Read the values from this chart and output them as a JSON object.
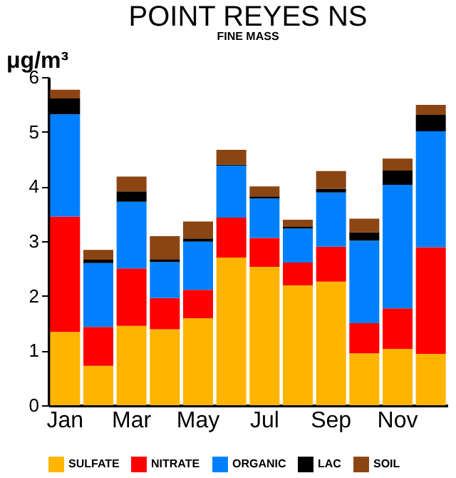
{
  "chart_data": {
    "type": "bar",
    "title": "POINT REYES NS",
    "subtitle": "FINE MASS",
    "ylabel": "μg/m³",
    "categories": [
      "Jan",
      null,
      "Mar",
      null,
      "May",
      null,
      "Jul",
      null,
      "Sep",
      null,
      "Nov",
      null
    ],
    "stacked": true,
    "ylim": [
      0,
      6
    ],
    "yticks": [
      0,
      1,
      2,
      3,
      4,
      5,
      6
    ],
    "legend": "bottom",
    "series": [
      {
        "name": "SULFATE",
        "color": "#ffb400",
        "values": [
          1.34,
          0.72,
          1.45,
          1.39,
          1.59,
          2.7,
          2.53,
          2.19,
          2.26,
          0.95,
          1.03,
          0.94
        ]
      },
      {
        "name": "NITRATE",
        "color": "#ff0000",
        "values": [
          2.11,
          0.71,
          1.05,
          0.57,
          0.52,
          0.73,
          0.53,
          0.42,
          0.64,
          0.55,
          0.74,
          1.95
        ]
      },
      {
        "name": "ORGANIC",
        "color": "#0080ff",
        "values": [
          1.87,
          1.17,
          1.22,
          0.66,
          0.88,
          0.95,
          0.72,
          0.62,
          0.99,
          1.51,
          2.26,
          2.12
        ]
      },
      {
        "name": "LAC",
        "color": "#000000",
        "values": [
          0.29,
          0.06,
          0.19,
          0.05,
          0.06,
          0.02,
          0.04,
          0.03,
          0.07,
          0.15,
          0.26,
          0.3
        ]
      },
      {
        "name": "SOIL",
        "color": "#8b4513",
        "values": [
          0.16,
          0.18,
          0.27,
          0.42,
          0.31,
          0.27,
          0.18,
          0.13,
          0.32,
          0.25,
          0.22,
          0.18
        ]
      }
    ]
  }
}
